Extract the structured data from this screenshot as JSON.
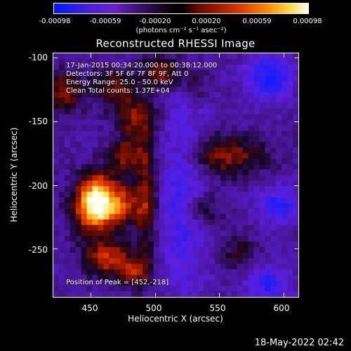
{
  "colorbar": {
    "ticks": [
      "-0.00098",
      "-0.00059",
      "-0.00020",
      "0.00020",
      "0.00059",
      "0.00098"
    ],
    "units": "(photons cm⁻² s⁻¹ asec⁻²)",
    "colors": {
      "min": "#0018ff",
      "mid": "#000000",
      "max": "#fffff0"
    }
  },
  "title": "Reconstructed RHESSI Image",
  "annotations": {
    "time_range": "17-Jan-2015 00:34:20.000 to 00:38:12.000",
    "detectors": "Detectors: 3F 5F 6F 7F 8F 9F, Att 0",
    "energy": "Energy Range: 25.0 - 50.0 keV",
    "method": "Clean     Total counts: 1.37E+04",
    "peak": "Position of Peak = [452,-218]"
  },
  "chart_data": {
    "type": "heatmap",
    "xlabel": "Heliocentric X (arcsec)",
    "ylabel": "Heliocentric Y (arcsec)",
    "xlim": [
      420,
      612
    ],
    "ylim": [
      -288,
      -96
    ],
    "x_ticks": [
      450,
      500,
      550,
      600
    ],
    "y_ticks": [
      -100,
      -150,
      -200,
      -250
    ],
    "x_tick_labels": [
      "450",
      "500",
      "550",
      "600"
    ],
    "y_tick_labels": [
      "-100",
      "-150",
      "-200",
      "-250"
    ],
    "peak": {
      "x": 452,
      "y": -218
    }
  },
  "timestamp": "18-May-2022 02:42"
}
